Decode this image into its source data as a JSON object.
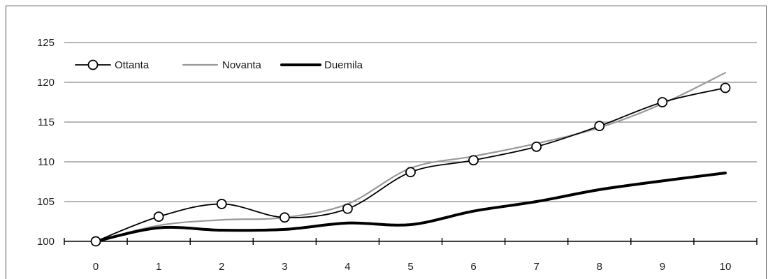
{
  "chart_data": {
    "type": "line",
    "title": "",
    "xlabel": "",
    "ylabel": "",
    "x": [
      0,
      1,
      2,
      3,
      4,
      5,
      6,
      7,
      8,
      9,
      10
    ],
    "x_tick_labels": [
      "0",
      "1",
      "2",
      "3",
      "4",
      "5",
      "6",
      "7",
      "8",
      "9",
      "10"
    ],
    "y_tick_labels": [
      "100",
      "105",
      "110",
      "115",
      "120",
      "125"
    ],
    "ylim": [
      100,
      125
    ],
    "y_ticks": [
      100,
      105,
      110,
      115,
      120,
      125
    ],
    "grid": "horizontal",
    "legend_position": "top-left",
    "series": [
      {
        "name": "Ottanta",
        "values": [
          100,
          103.1,
          104.7,
          103.0,
          104.1,
          108.7,
          110.2,
          111.9,
          114.5,
          117.5,
          119.3
        ],
        "color": "#000000",
        "marker": "circle",
        "style": "thin"
      },
      {
        "name": "Novanta",
        "values": [
          100,
          102.0,
          102.7,
          103.0,
          104.7,
          109.2,
          110.7,
          112.3,
          114.3,
          117.3,
          121.2
        ],
        "color": "#999999",
        "marker": "none",
        "style": "thin"
      },
      {
        "name": "Duemila",
        "values": [
          100,
          101.7,
          101.4,
          101.5,
          102.3,
          102.1,
          103.8,
          105.0,
          106.5,
          107.6,
          108.6
        ],
        "color": "#000000",
        "marker": "none",
        "style": "thick"
      }
    ]
  }
}
